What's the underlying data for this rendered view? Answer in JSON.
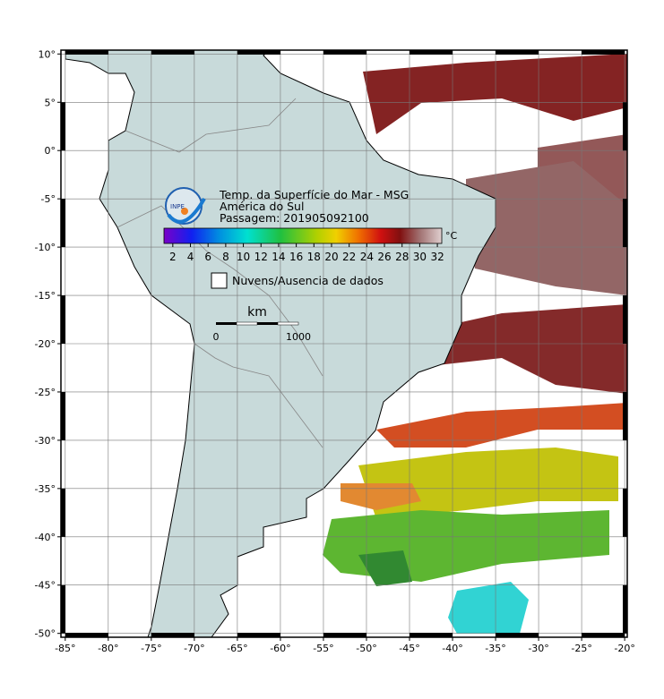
{
  "map": {
    "title": "Temp. da Superfície do Mar - MSG",
    "region": "América do Sul",
    "pass": "Passagem: 201905092100",
    "logo": "INPE",
    "xlim": [
      -85.5,
      -19.7
    ],
    "ylim": [
      -50.4,
      10.4
    ],
    "xticks": [
      {
        "value": -85,
        "label": "-85°"
      },
      {
        "value": -80,
        "label": "-80°"
      },
      {
        "value": -75,
        "label": "-75°"
      },
      {
        "value": -70,
        "label": "-70°"
      },
      {
        "value": -65,
        "label": "-65°"
      },
      {
        "value": -60,
        "label": "-60°"
      },
      {
        "value": -55,
        "label": "-55°"
      },
      {
        "value": -50,
        "label": "-50°"
      },
      {
        "value": -45,
        "label": "-45°"
      },
      {
        "value": -40,
        "label": "-40°"
      },
      {
        "value": -35,
        "label": "-35°"
      },
      {
        "value": -30,
        "label": "-30°"
      },
      {
        "value": -25,
        "label": "-25°"
      },
      {
        "value": -20,
        "label": "-20°"
      }
    ],
    "yticks": [
      {
        "value": 10,
        "label": "10°"
      },
      {
        "value": 5,
        "label": "5°"
      },
      {
        "value": 0,
        "label": "0°"
      },
      {
        "value": -5,
        "label": "-5°"
      },
      {
        "value": -10,
        "label": "-10°"
      },
      {
        "value": -15,
        "label": "-15°"
      },
      {
        "value": -20,
        "label": "-20°"
      },
      {
        "value": -25,
        "label": "-25°"
      },
      {
        "value": -30,
        "label": "-30°"
      },
      {
        "value": -35,
        "label": "-35°"
      },
      {
        "value": -40,
        "label": "-40°"
      },
      {
        "value": -45,
        "label": "-45°"
      },
      {
        "value": -50,
        "label": "-50°"
      }
    ],
    "colorbar": {
      "unit": "°C",
      "lim": [
        1,
        32.5
      ],
      "ticks": [
        2,
        4,
        6,
        8,
        10,
        12,
        14,
        16,
        18,
        20,
        22,
        24,
        26,
        28,
        30,
        32
      ]
    },
    "legend": "Nuvens/Ausencia de dados",
    "scale_bar": {
      "unit": "km",
      "start": "0",
      "end": "1000"
    }
  }
}
